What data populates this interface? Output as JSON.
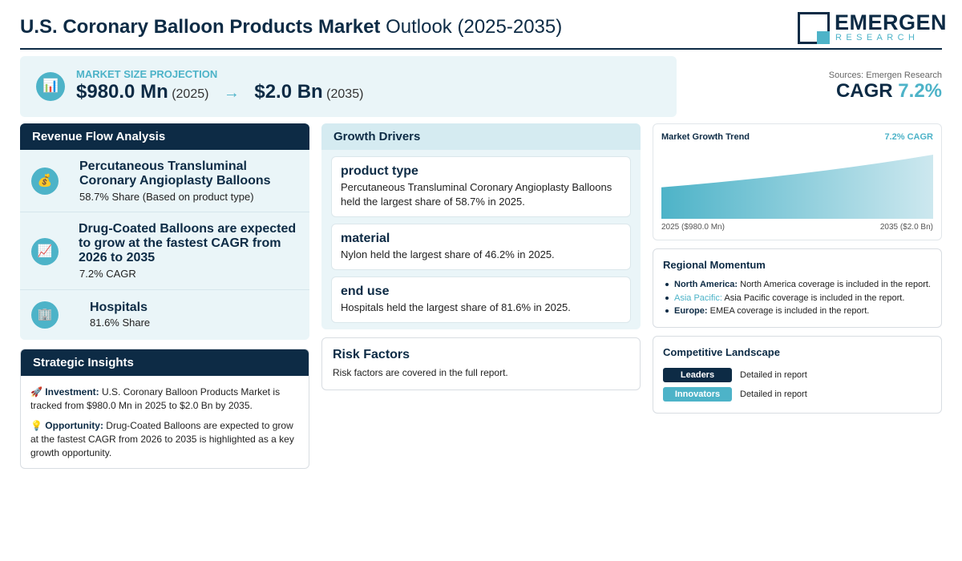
{
  "header": {
    "title_bold": "U.S. Coronary Balloon Products Market",
    "title_rest": "Outlook (2025-2035)",
    "logo_main": "EMERGEN",
    "logo_sub": "RESEARCH"
  },
  "projection": {
    "label": "MARKET SIZE PROJECTION",
    "start_value": "$980.0 Mn",
    "start_year": "(2025)",
    "arrow": "→",
    "end_value": "$2.0 Bn",
    "end_year": "(2035)",
    "icon": "bar-chart-icon"
  },
  "sources": "Sources: Emergen Research",
  "cagr": {
    "label": "CAGR",
    "value": "7.2%"
  },
  "revenue_flow": {
    "heading": "Revenue Flow Analysis",
    "items": [
      {
        "icon": "money-bag-icon",
        "glyph": "💰",
        "title": "Percutaneous Transluminal Coronary Angioplasty Balloons",
        "sub": "58.7% Share (Based on product type)"
      },
      {
        "icon": "trend-chart-icon",
        "glyph": "📈",
        "title": "Drug-Coated Balloons are expected to grow at the fastest CAGR from 2026 to 2035",
        "sub": "7.2% CAGR"
      },
      {
        "icon": "hospital-icon",
        "glyph": "🏢",
        "title": "Hospitals",
        "sub": "81.6% Share"
      }
    ]
  },
  "strategic_insights": {
    "heading": "Strategic Insights",
    "items": [
      {
        "glyph": "🚀",
        "label": "Investment:",
        "text": "U.S. Coronary Balloon Products Market is tracked from $980.0 Mn in 2025 to $2.0 Bn by 2035."
      },
      {
        "glyph": "💡",
        "label": "Opportunity:",
        "text": "Drug-Coated Balloons are expected to grow at the fastest CAGR from 2026 to 2035 is highlighted as a key growth opportunity."
      }
    ]
  },
  "growth_drivers": {
    "heading": "Growth Drivers",
    "cards": [
      {
        "title": "product type",
        "text": "Percutaneous Transluminal Coronary Angioplasty Balloons held the largest share of 58.7% in 2025."
      },
      {
        "title": "material",
        "text": "Nylon held the largest share of 46.2% in 2025."
      },
      {
        "title": "end use",
        "text": "Hospitals held the largest share of 81.6% in 2025."
      }
    ]
  },
  "risk_factors": {
    "title": "Risk Factors",
    "text": "Risk factors are covered in the full report."
  },
  "trend": {
    "title": "Market Growth Trend",
    "cagr": "7.2% CAGR",
    "start_label": "2025 ($980.0 Mn)",
    "end_label": "2035 ($2.0 Bn)"
  },
  "chart_data": {
    "type": "area",
    "x": [
      2025,
      2035
    ],
    "values": [
      980.0,
      2000.0
    ],
    "title": "Market Growth Trend"
  },
  "regional": {
    "title": "Regional Momentum",
    "items": [
      {
        "label": "North America:",
        "text": "North America coverage is included in the report.",
        "accent": false
      },
      {
        "label": "Asia Pacific:",
        "text": "Asia Pacific coverage is included in the report.",
        "accent": true
      },
      {
        "label": "Europe:",
        "text": "EMEA coverage is included in the report.",
        "accent": false
      }
    ]
  },
  "competitive": {
    "title": "Competitive Landscape",
    "rows": [
      {
        "badge": "Leaders",
        "text": "Detailed in report",
        "color": "#0d2b45"
      },
      {
        "badge": "Innovators",
        "text": "Detailed in report",
        "color": "#4db3c8"
      }
    ]
  },
  "colors": {
    "navy": "#0d2b45",
    "teal": "#4db3c8",
    "panel": "#eaf5f8"
  }
}
